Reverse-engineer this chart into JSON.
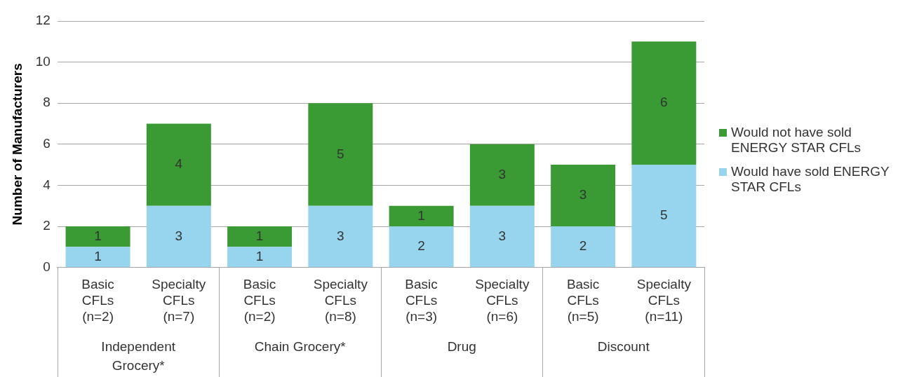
{
  "chart_data": {
    "type": "bar",
    "ylabel": "Number of Manufacturers",
    "categories": [
      "Basic CFLs (n=2)",
      "Specialty CFLs (n=7)",
      "Basic CFLs (n=2)",
      "Specialty CFLs (n=8)",
      "Basic CFLs (n=3)",
      "Specialty CFLs (n=6)",
      "Basic CFLs (n=5)",
      "Specialty CFLs (n=11)"
    ],
    "series": [
      {
        "name": "Would have sold ENERGY STAR CFLs",
        "color": "#97d5ee",
        "values": [
          1,
          3,
          1,
          3,
          2,
          3,
          2,
          5
        ]
      },
      {
        "name": "Would not have sold ENERGY STAR CFLs",
        "color": "#3a9a33",
        "values": [
          1,
          4,
          1,
          5,
          1,
          3,
          3,
          6
        ]
      }
    ],
    "stacked": true,
    "ylim": [
      0,
      12
    ],
    "yticks": [
      0,
      2,
      4,
      6,
      8,
      10,
      12
    ],
    "grid": "y",
    "legend": "right",
    "data_labels": true,
    "annotations": [
      "Independent Grocery*",
      "Chain Grocery*",
      "Drug",
      "Discount"
    ]
  }
}
